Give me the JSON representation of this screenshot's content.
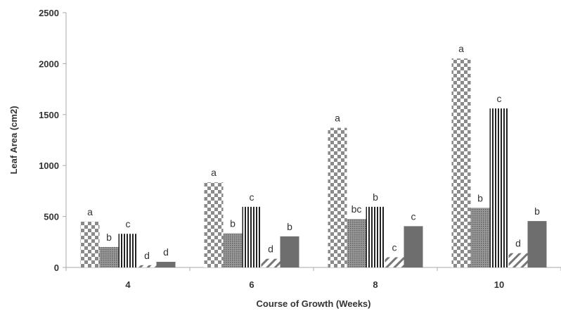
{
  "chart_data": {
    "type": "bar",
    "title": "",
    "xlabel": "Course of Growth (Weeks)",
    "ylabel": "Leaf Area (cm2)",
    "ylim": [
      0,
      2500
    ],
    "yticks": [
      "0",
      "500",
      "1000",
      "1500",
      "2000",
      "2500"
    ],
    "categories": [
      "4",
      "6",
      "8",
      "10"
    ],
    "grid": false,
    "legend": "none",
    "series": [
      {
        "pattern": "checkerboard",
        "values": [
          450,
          835,
          1370,
          2050
        ],
        "labels": [
          "a",
          "a",
          "a",
          "a"
        ]
      },
      {
        "pattern": "fine-dots",
        "values": [
          200,
          335,
          475,
          585
        ],
        "labels": [
          "b",
          "b",
          "bc",
          "b"
        ]
      },
      {
        "pattern": "vertical-stripes",
        "values": [
          330,
          595,
          595,
          1560
        ],
        "labels": [
          "c",
          "c",
          "b",
          "c"
        ]
      },
      {
        "pattern": "diagonal-stripes",
        "values": [
          22,
          85,
          100,
          140
        ],
        "labels": [
          "d",
          "d",
          "c",
          "d"
        ]
      },
      {
        "pattern": "solid-dark-gray",
        "values": [
          55,
          305,
          405,
          455
        ],
        "labels": [
          "d",
          "b",
          "c",
          "b"
        ]
      }
    ]
  }
}
